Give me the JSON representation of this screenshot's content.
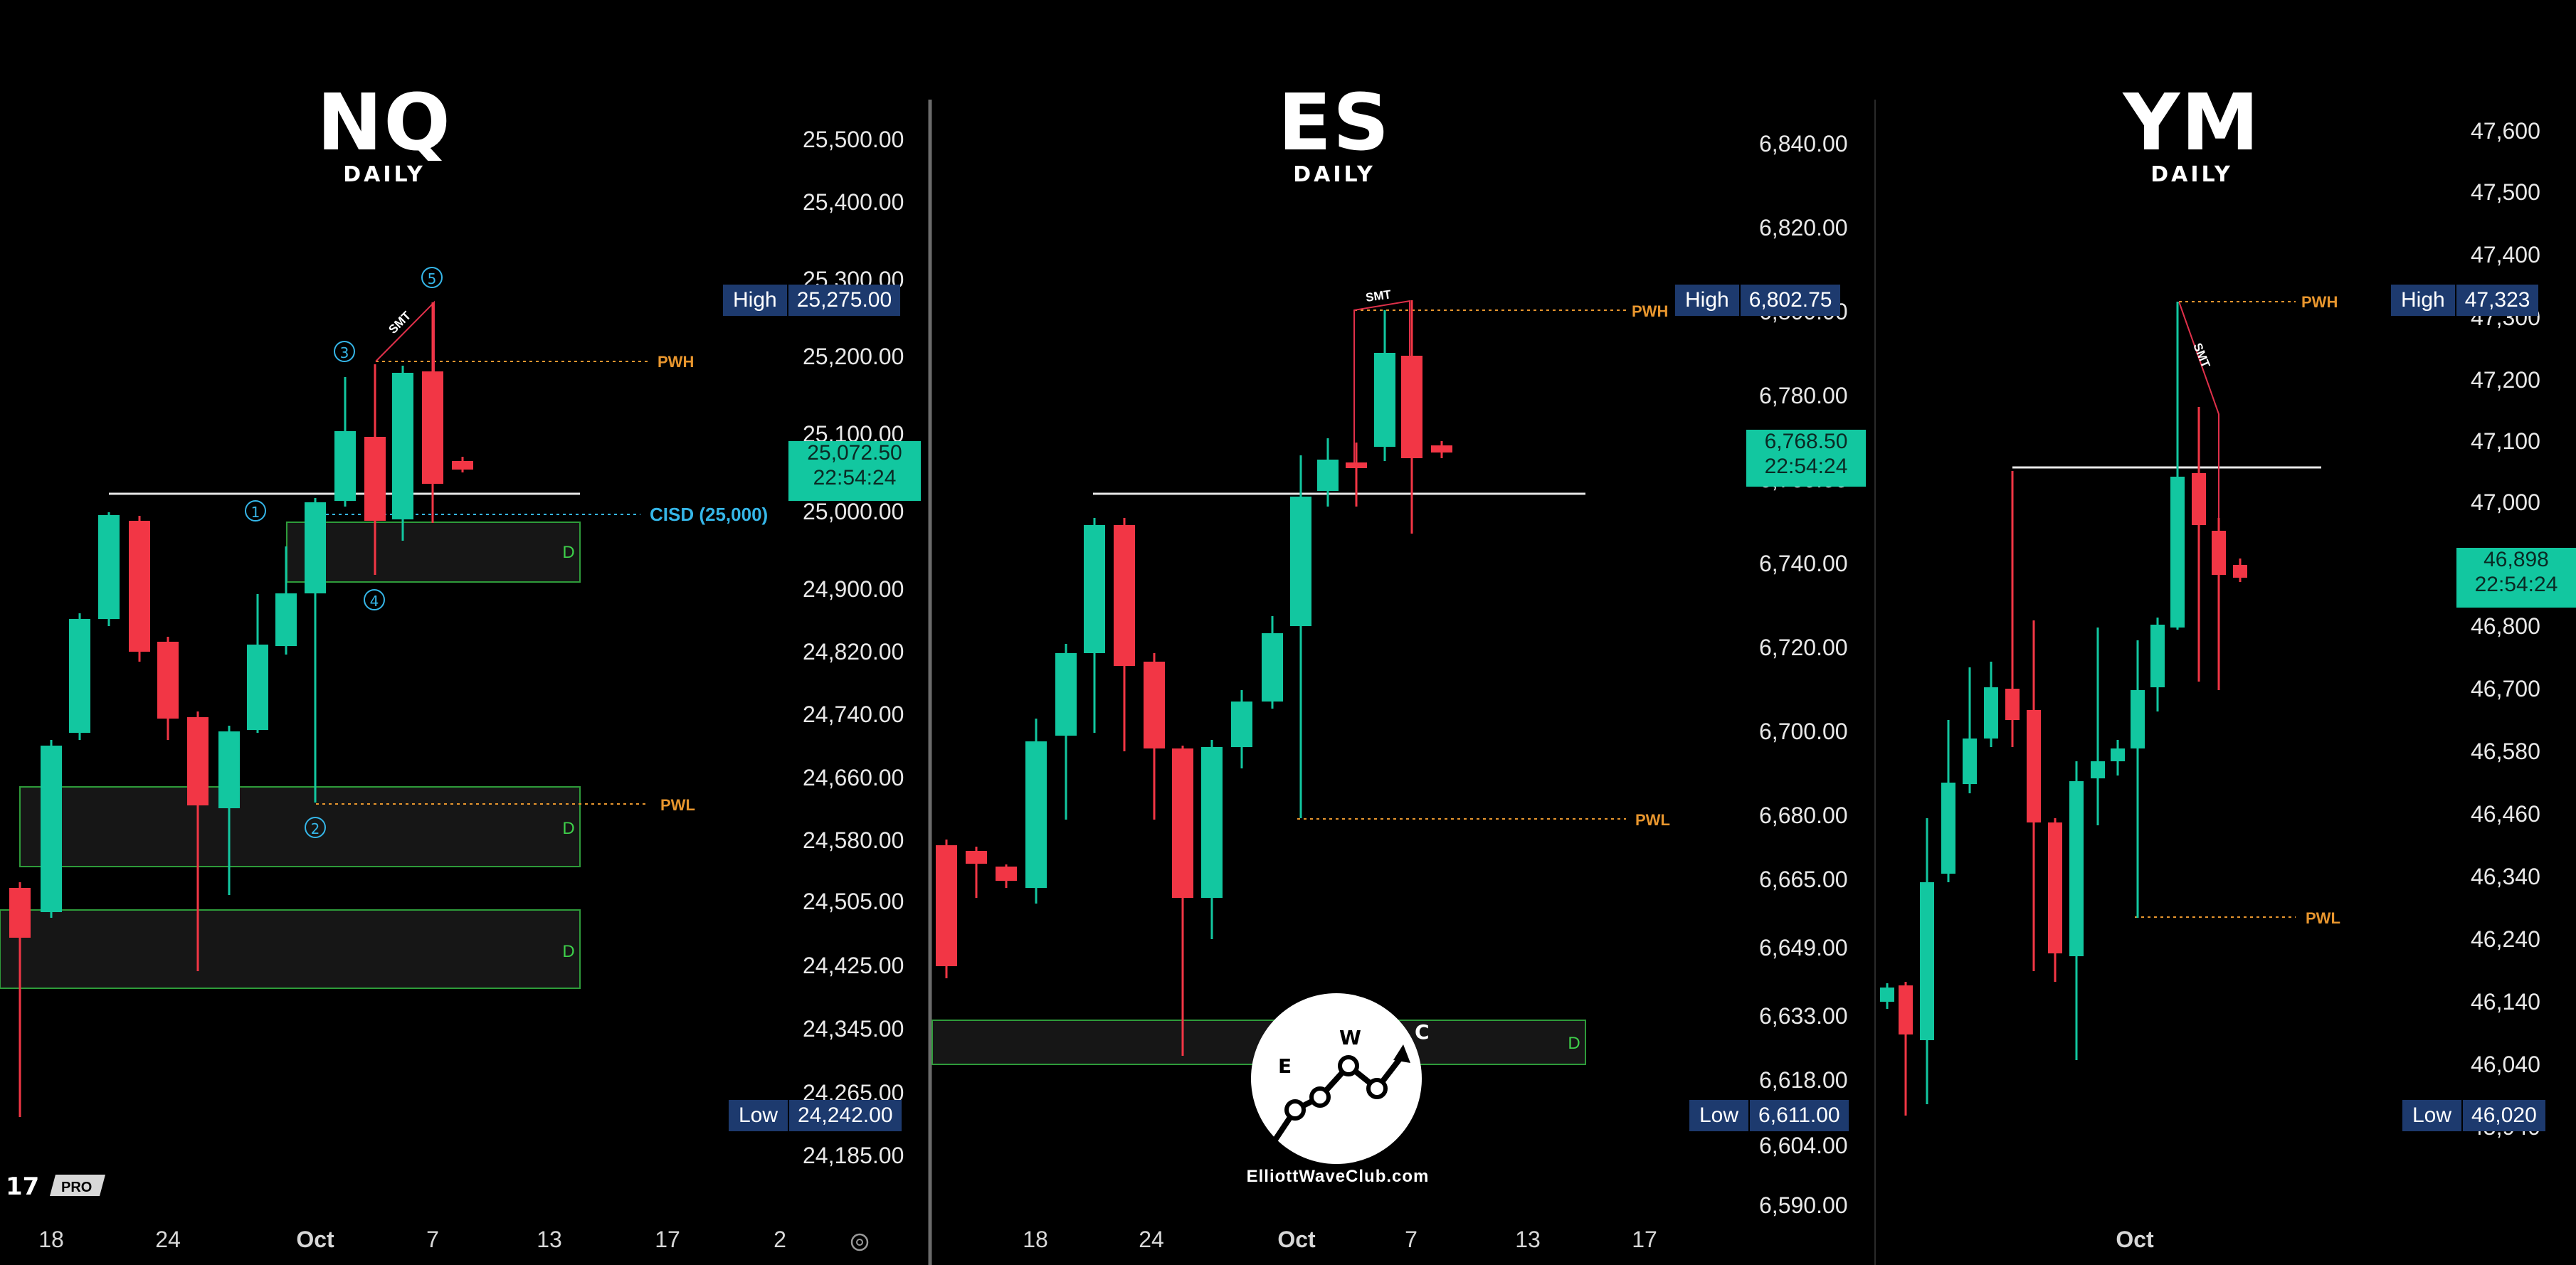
{
  "panels": [
    {
      "title": "NQ",
      "subtitle": "DAILY",
      "price_ticks": [
        "25,500.00",
        "25,400.00",
        "25,300.00",
        "25,200.00",
        "25,100.00",
        "25,000.00",
        "24,900.00",
        "24,820.00",
        "24,740.00",
        "24,660.00",
        "24,580.00",
        "24,505.00",
        "24,425.00",
        "24,345.00",
        "24,265.00",
        "24,185.00"
      ],
      "high": {
        "label": "High",
        "value": "25,275.00"
      },
      "low": {
        "label": "Low",
        "value": "24,242.00"
      },
      "last": {
        "price": "25,072.50",
        "countdown": "22:54:24"
      },
      "x_ticks": [
        "18",
        "24",
        "Oct",
        "7",
        "13",
        "17",
        "2"
      ],
      "annotations": {
        "pwh": "PWH",
        "pwl": "PWL",
        "cisd": "CISD (25,000)",
        "smt": "SMT",
        "zone": "D",
        "waves": [
          "①",
          "②",
          "③",
          "④",
          "⑤"
        ]
      }
    },
    {
      "title": "ES",
      "subtitle": "DAILY",
      "price_ticks": [
        "6,840.00",
        "6,820.00",
        "6,800.00",
        "6,780.00",
        "6,760.00",
        "6,740.00",
        "6,720.00",
        "6,700.00",
        "6,680.00",
        "6,665.00",
        "6,649.00",
        "6,633.00",
        "6,618.00",
        "6,604.00",
        "6,590.00"
      ],
      "high": {
        "label": "High",
        "value": "6,802.75"
      },
      "low": {
        "label": "Low",
        "value": "6,611.00"
      },
      "last": {
        "price": "6,768.50",
        "countdown": "22:54:24"
      },
      "x_ticks": [
        "18",
        "24",
        "Oct",
        "7",
        "13",
        "17"
      ],
      "annotations": {
        "pwh": "PWH",
        "pwl": "PWL",
        "smt": "SMT",
        "zone": "D"
      }
    },
    {
      "title": "YM",
      "subtitle": "DAILY",
      "price_ticks": [
        "47,600",
        "47,500",
        "47,400",
        "47,300",
        "47,200",
        "47,100",
        "47,000",
        "46,800",
        "46,700",
        "46,580",
        "46,460",
        "46,340",
        "46,240",
        "46,140",
        "46,040",
        "45,940"
      ],
      "high": {
        "label": "High",
        "value": "47,323"
      },
      "low": {
        "label": "Low",
        "value": "46,020"
      },
      "last": {
        "price": "46,898",
        "countdown": "22:54:24"
      },
      "x_ticks": [
        "Oct"
      ],
      "annotations": {
        "pwh": "PWH",
        "pwl": "PWL",
        "smt": "SMT"
      }
    }
  ],
  "logo": {
    "site": "ElliottWaveClub.com",
    "letters": [
      "E",
      "W",
      "C"
    ]
  },
  "watermark": "PRO",
  "colors": {
    "up": "#12c7a0",
    "down": "#f23645",
    "background": "#000000",
    "pwh_pwl": "#e8962e",
    "cisd": "#35b6e8",
    "zone_border": "#2e9b3a",
    "zone_text": "#3ed04a",
    "badge": "#1d3a6e",
    "smt_line": "#e0304a"
  }
}
